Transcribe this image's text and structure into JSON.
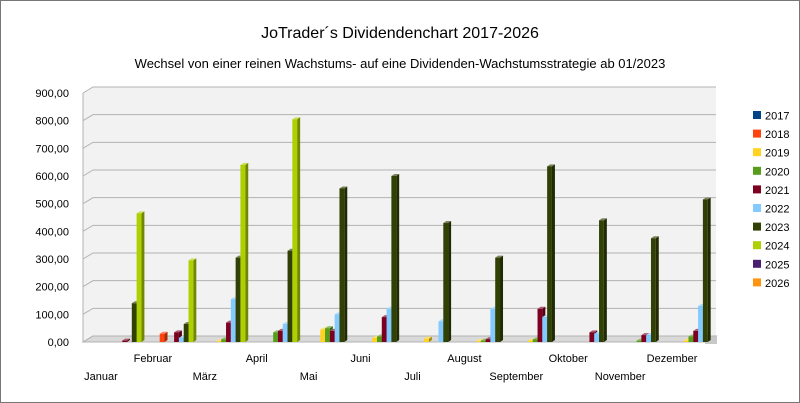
{
  "chart_data": {
    "type": "bar",
    "title": "JoTrader´s Dividendenchart 2017-2026",
    "subtitle": "Wechsel von einer reinen Wachstums- auf eine Dividenden-Wachstumsstrategie ab 01/2023",
    "xlabel": "",
    "ylabel": "",
    "ylim": [
      0,
      900
    ],
    "yticks": [
      "0,00",
      "100,00",
      "200,00",
      "300,00",
      "400,00",
      "500,00",
      "600,00",
      "700,00",
      "800,00",
      "900,00"
    ],
    "grid": true,
    "legend_position": "right",
    "categories": [
      "Januar",
      "Februar",
      "März",
      "April",
      "Mai",
      "Juni",
      "Juli",
      "August",
      "September",
      "Oktober",
      "November",
      "Dezember"
    ],
    "series": [
      {
        "name": "2017",
        "color": "#004586",
        "values": [
          0,
          0,
          0,
          0,
          0,
          0,
          0,
          0,
          0,
          0,
          0,
          0
        ]
      },
      {
        "name": "2018",
        "color": "#ff420e",
        "values": [
          0,
          30,
          0,
          0,
          0,
          0,
          0,
          0,
          0,
          0,
          0,
          0
        ]
      },
      {
        "name": "2019",
        "color": "#ffd320",
        "values": [
          0,
          0,
          3,
          0,
          45,
          15,
          12,
          3,
          5,
          0,
          0,
          5
        ]
      },
      {
        "name": "2020",
        "color": "#579d1c",
        "values": [
          0,
          0,
          10,
          35,
          50,
          20,
          0,
          5,
          10,
          0,
          5,
          20
        ]
      },
      {
        "name": "2021",
        "color": "#7e0021",
        "values": [
          5,
          35,
          70,
          40,
          40,
          90,
          0,
          10,
          120,
          35,
          25,
          40
        ]
      },
      {
        "name": "2022",
        "color": "#83caff",
        "values": [
          0,
          15,
          155,
          65,
          100,
          120,
          75,
          120,
          90,
          30,
          25,
          130
        ]
      },
      {
        "name": "2023",
        "color": "#314004",
        "values": [
          140,
          65,
          305,
          330,
          555,
          600,
          430,
          305,
          635,
          440,
          375,
          515
        ]
      },
      {
        "name": "2024",
        "color": "#aecf00",
        "values": [
          465,
          295,
          640,
          805,
          0,
          0,
          0,
          0,
          0,
          0,
          0,
          0
        ]
      },
      {
        "name": "2025",
        "color": "#4b1f6f",
        "values": [
          0,
          0,
          0,
          0,
          0,
          0,
          0,
          0,
          0,
          0,
          0,
          0
        ]
      },
      {
        "name": "2026",
        "color": "#ff950e",
        "values": [
          0,
          0,
          0,
          0,
          0,
          0,
          0,
          0,
          0,
          0,
          0,
          0
        ]
      }
    ]
  }
}
